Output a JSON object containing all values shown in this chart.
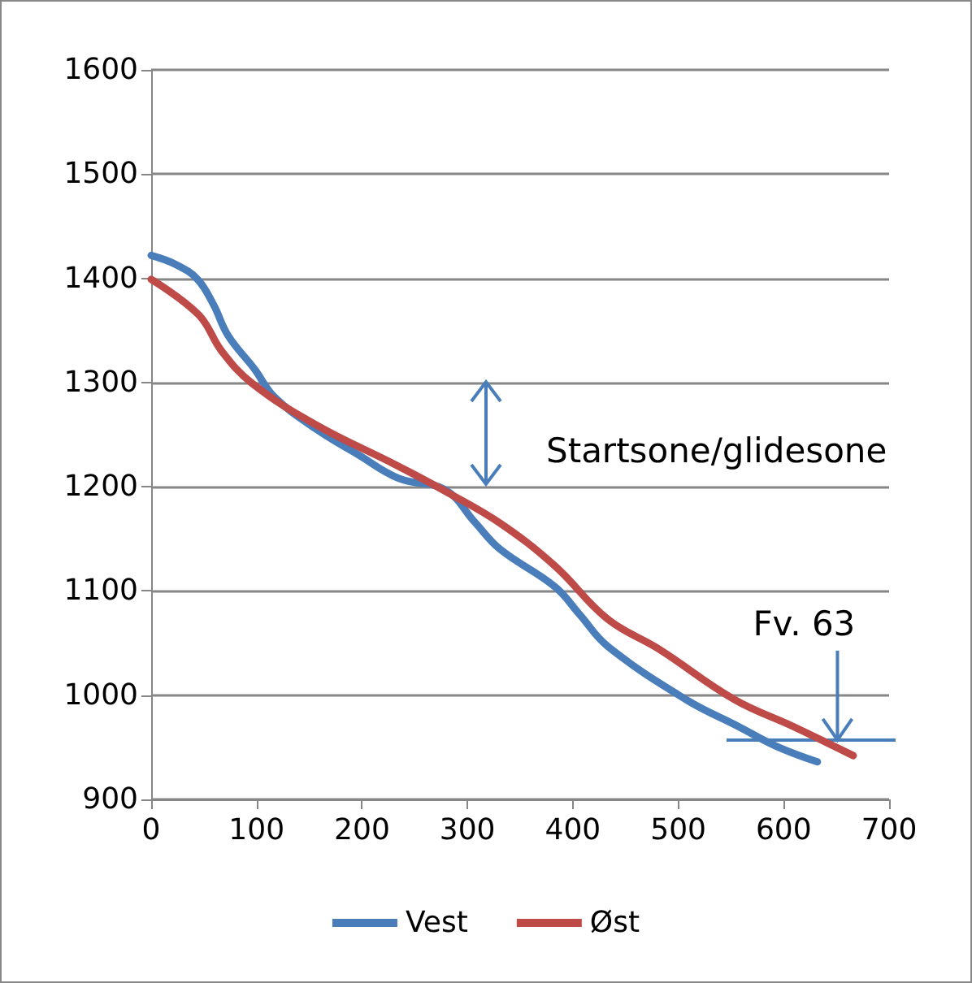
{
  "chart_data": {
    "type": "line",
    "xlim": [
      0,
      700
    ],
    "xticks": [
      0,
      100,
      200,
      300,
      400,
      500,
      600,
      700
    ],
    "ylim": [
      900,
      1600
    ],
    "yticks": [
      900,
      1000,
      1100,
      1200,
      1300,
      1400,
      1500,
      1600
    ],
    "grid": "y",
    "legend": "bottom",
    "marker": "none",
    "line_style": "solid",
    "series": [
      {
        "name": "Vest",
        "color": "#4a7ebb",
        "x": [
          0,
          24,
          44,
          59,
          73,
          98,
          117,
          157,
          196,
          235,
          279,
          307,
          331,
          383,
          406,
          433,
          507,
          557,
          593,
          632
        ],
        "values": [
          1422,
          1413,
          1399,
          1375,
          1345,
          1313,
          1286,
          1255,
          1231,
          1208,
          1197,
          1166,
          1140,
          1104,
          1078,
          1047,
          996,
          970,
          951,
          936
        ]
      },
      {
        "name": "Øst",
        "color": "#be4b48",
        "x": [
          0,
          45,
          67,
          96,
          157,
          232,
          282,
          331,
          383,
          433,
          482,
          553,
          609,
          666
        ],
        "values": [
          1399,
          1365,
          1330,
          1299,
          1259,
          1221,
          1194,
          1165,
          1124,
          1073,
          1044,
          996,
          970,
          942
        ]
      }
    ],
    "ref_lines": [
      {
        "axis": "y",
        "value": 957,
        "color": "#4a7ebb"
      }
    ],
    "annotations": [
      "Startsone/glidesone",
      {
        "text": "Fv. 63",
        "x": 651,
        "y": 957
      }
    ]
  }
}
